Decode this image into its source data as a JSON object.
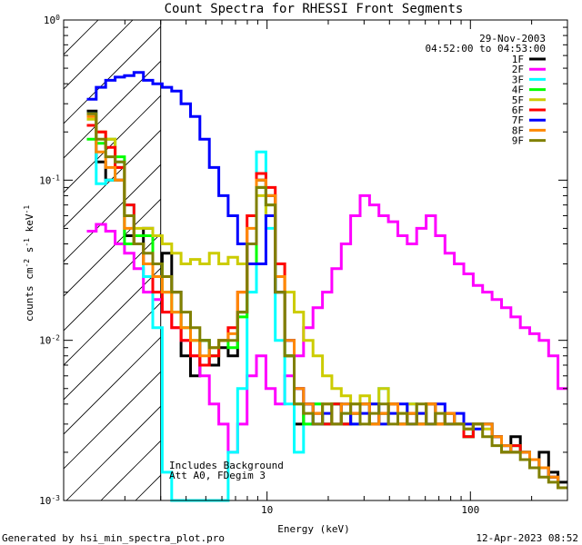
{
  "chart_data": {
    "type": "line",
    "title": "Count Spectra for RHESSI Front Segments",
    "xlabel": "Energy (keV)",
    "ylabel_main": "counts cm",
    "ylabel_sup1": "-2",
    "ylabel_mid1": " s",
    "ylabel_sup2": "-1",
    "ylabel_mid2": " keV",
    "ylabel_sup3": "-1",
    "xscale": "log",
    "yscale": "log",
    "xlim": [
      1,
      300
    ],
    "ylim": [
      0.001,
      1
    ],
    "x_ticks": [
      {
        "v": 10,
        "label": "10"
      },
      {
        "v": 100,
        "label": "100"
      }
    ],
    "y_ticks": [
      {
        "v": 1,
        "base": "10",
        "exp": "0"
      },
      {
        "v": 0.1,
        "base": "10",
        "exp": "-1"
      },
      {
        "v": 0.01,
        "base": "10",
        "exp": "-2"
      },
      {
        "v": 0.001,
        "base": "10",
        "exp": "-3"
      }
    ],
    "date": "29-Nov-2003",
    "time_range": "04:52:00 to 04:53:00",
    "legend_position": "top-right",
    "annotation_lines": [
      "Includes Background",
      "Att A0, FDegim 3"
    ],
    "hatched_below_keV": 3,
    "series": [
      {
        "name": "1F",
        "color": "#000000",
        "y": [
          0.27,
          0.13,
          0.1,
          0.1,
          0.045,
          0.04,
          0.05,
          0.03,
          0.035,
          0.02,
          0.008,
          0.006,
          0.01,
          0.007,
          0.009,
          0.008,
          0.015,
          0.04,
          0.1,
          0.08,
          0.02,
          0.008,
          0.003,
          0.004,
          0.0035,
          0.003,
          0.004,
          0.003,
          0.0035,
          0.004,
          0.003,
          0.0035,
          0.004,
          0.003,
          0.0035,
          0.003,
          0.004,
          0.003,
          0.0035,
          0.003,
          0.0025,
          0.003,
          0.003,
          0.0025,
          0.002,
          0.0025,
          0.002,
          0.0018,
          0.002,
          0.0015,
          0.0013
        ]
      },
      {
        "name": "2F",
        "color": "#ff00ff",
        "y": [
          0.048,
          0.053,
          0.048,
          0.04,
          0.035,
          0.028,
          0.02,
          0.018,
          0.015,
          0.012,
          0.01,
          0.008,
          0.006,
          0.004,
          0.003,
          0.002,
          0.003,
          0.006,
          0.008,
          0.005,
          0.004,
          0.006,
          0.008,
          0.012,
          0.016,
          0.02,
          0.028,
          0.04,
          0.06,
          0.08,
          0.07,
          0.06,
          0.055,
          0.045,
          0.04,
          0.05,
          0.06,
          0.045,
          0.035,
          0.03,
          0.026,
          0.022,
          0.02,
          0.018,
          0.016,
          0.014,
          0.012,
          0.011,
          0.01,
          0.008,
          0.005
        ]
      },
      {
        "name": "3F",
        "color": "#00ffff",
        "y": [
          0.26,
          0.095,
          0.1,
          0.13,
          0.07,
          0.04,
          0.025,
          0.012,
          0.0015,
          0.001,
          0.001,
          0.001,
          0.001,
          0.001,
          0.001,
          0.002,
          0.005,
          0.02,
          0.15,
          0.05,
          0.01,
          0.004,
          0.002,
          0.003,
          0.004,
          0.003,
          0.004,
          0.0035,
          0.003,
          0.004,
          0.003,
          0.005,
          0.004,
          0.003,
          0.004,
          0.003,
          0.004,
          0.003,
          0.0035,
          0.003,
          0.0025,
          0.003,
          0.003,
          0.0025,
          0.002,
          0.0022,
          0.002,
          0.0018,
          0.0016,
          0.0014,
          0.0012
        ]
      },
      {
        "name": "4F",
        "color": "#00ff00",
        "y": [
          0.18,
          0.17,
          0.18,
          0.14,
          0.04,
          0.045,
          0.045,
          0.03,
          0.02,
          0.015,
          0.012,
          0.01,
          0.01,
          0.008,
          0.01,
          0.009,
          0.014,
          0.03,
          0.09,
          0.07,
          0.02,
          0.008,
          0.004,
          0.003,
          0.004,
          0.003,
          0.004,
          0.003,
          0.0035,
          0.004,
          0.003,
          0.0035,
          0.004,
          0.003,
          0.0035,
          0.003,
          0.004,
          0.003,
          0.0035,
          0.003,
          0.0025,
          0.003,
          0.003,
          0.0025,
          0.002,
          0.0022,
          0.002,
          0.0018,
          0.0016,
          0.0014,
          0.0012
        ]
      },
      {
        "name": "5F",
        "color": "#cccc00",
        "y": [
          0.24,
          0.2,
          0.18,
          0.12,
          0.06,
          0.05,
          0.05,
          0.045,
          0.04,
          0.035,
          0.03,
          0.032,
          0.03,
          0.035,
          0.03,
          0.033,
          0.03,
          0.04,
          0.08,
          0.06,
          0.03,
          0.02,
          0.015,
          0.01,
          0.008,
          0.006,
          0.005,
          0.0045,
          0.004,
          0.0045,
          0.004,
          0.005,
          0.004,
          0.0035,
          0.004,
          0.0035,
          0.004,
          0.003,
          0.0035,
          0.003,
          0.003,
          0.003,
          0.0028,
          0.0025,
          0.0022,
          0.002,
          0.002,
          0.0018,
          0.0016,
          0.0014,
          0.0012
        ]
      },
      {
        "name": "6F",
        "color": "#ff0000",
        "y": [
          0.22,
          0.2,
          0.16,
          0.12,
          0.07,
          0.04,
          0.03,
          0.02,
          0.015,
          0.012,
          0.01,
          0.008,
          0.007,
          0.008,
          0.01,
          0.012,
          0.02,
          0.06,
          0.11,
          0.09,
          0.03,
          0.01,
          0.005,
          0.004,
          0.0035,
          0.003,
          0.004,
          0.003,
          0.0035,
          0.004,
          0.003,
          0.0035,
          0.004,
          0.003,
          0.0035,
          0.003,
          0.004,
          0.003,
          0.0035,
          0.003,
          0.0025,
          0.003,
          0.003,
          0.0025,
          0.002,
          0.0022,
          0.002,
          0.0018,
          0.0016,
          0.0014,
          0.0012
        ]
      },
      {
        "name": "7F",
        "color": "#0000ff",
        "y": [
          0.32,
          0.38,
          0.42,
          0.44,
          0.45,
          0.47,
          0.42,
          0.4,
          0.38,
          0.36,
          0.3,
          0.25,
          0.18,
          0.12,
          0.08,
          0.06,
          0.04,
          0.03,
          0.03,
          0.06,
          0.02,
          0.01,
          0.005,
          0.004,
          0.003,
          0.0035,
          0.003,
          0.004,
          0.003,
          0.0035,
          0.004,
          0.003,
          0.0035,
          0.004,
          0.003,
          0.0035,
          0.003,
          0.004,
          0.003,
          0.0035,
          0.003,
          0.0028,
          0.003,
          0.0025,
          0.0022,
          0.002,
          0.002,
          0.0018,
          0.0016,
          0.0014,
          0.0012
        ]
      },
      {
        "name": "8F",
        "color": "#ff8800",
        "y": [
          0.25,
          0.15,
          0.12,
          0.1,
          0.05,
          0.04,
          0.03,
          0.025,
          0.02,
          0.015,
          0.012,
          0.01,
          0.008,
          0.009,
          0.01,
          0.011,
          0.02,
          0.05,
          0.1,
          0.08,
          0.025,
          0.01,
          0.005,
          0.004,
          0.0035,
          0.004,
          0.003,
          0.004,
          0.0035,
          0.004,
          0.003,
          0.0035,
          0.004,
          0.003,
          0.0035,
          0.003,
          0.004,
          0.003,
          0.0035,
          0.003,
          0.0028,
          0.003,
          0.003,
          0.0025,
          0.0022,
          0.002,
          0.002,
          0.0018,
          0.0016,
          0.0014,
          0.0012
        ]
      },
      {
        "name": "9F",
        "color": "#808000",
        "y": [
          0.26,
          0.18,
          0.14,
          0.13,
          0.06,
          0.04,
          0.035,
          0.03,
          0.025,
          0.02,
          0.015,
          0.012,
          0.01,
          0.009,
          0.01,
          0.01,
          0.015,
          0.04,
          0.09,
          0.07,
          0.02,
          0.008,
          0.004,
          0.0035,
          0.003,
          0.004,
          0.003,
          0.0035,
          0.004,
          0.003,
          0.0035,
          0.004,
          0.003,
          0.0035,
          0.003,
          0.004,
          0.003,
          0.0035,
          0.003,
          0.003,
          0.0028,
          0.003,
          0.0025,
          0.0022,
          0.002,
          0.002,
          0.0018,
          0.0016,
          0.0014,
          0.0013,
          0.0012
        ]
      }
    ]
  },
  "footer": {
    "generated_by": "Generated by hsi_min_spectra_plot.pro",
    "timestamp": "12-Apr-2023 08:52"
  }
}
